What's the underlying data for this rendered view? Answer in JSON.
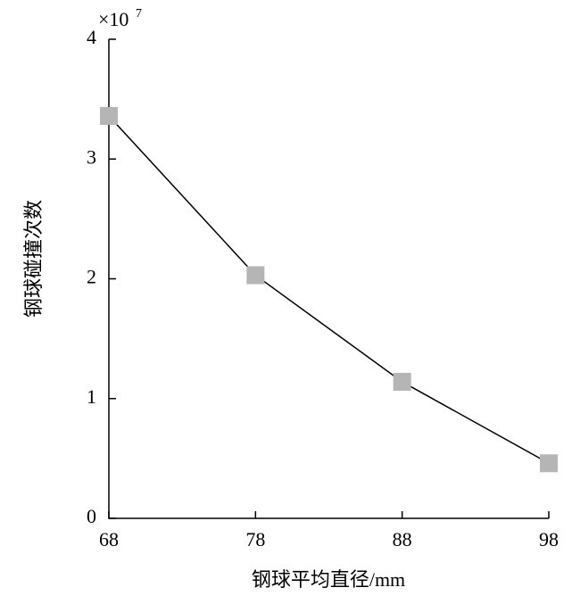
{
  "chart_data": {
    "type": "line",
    "x_label": "钢球平均直径/mm",
    "y_label": "钢球碰撞次数",
    "y_multiplier_base": "×10",
    "y_multiplier_exponent": "7",
    "x": [
      68,
      78,
      88,
      98
    ],
    "series": [
      {
        "color": "#b5b5b5",
        "line_color": "#000000",
        "values": [
          3.36,
          2.03,
          1.14,
          0.46
        ]
      }
    ],
    "xlim": [
      68,
      98
    ],
    "xticks": [
      68,
      78,
      88,
      98
    ],
    "ylim": [
      0,
      4
    ],
    "yticks": [
      0,
      1,
      2,
      3,
      4
    ]
  }
}
